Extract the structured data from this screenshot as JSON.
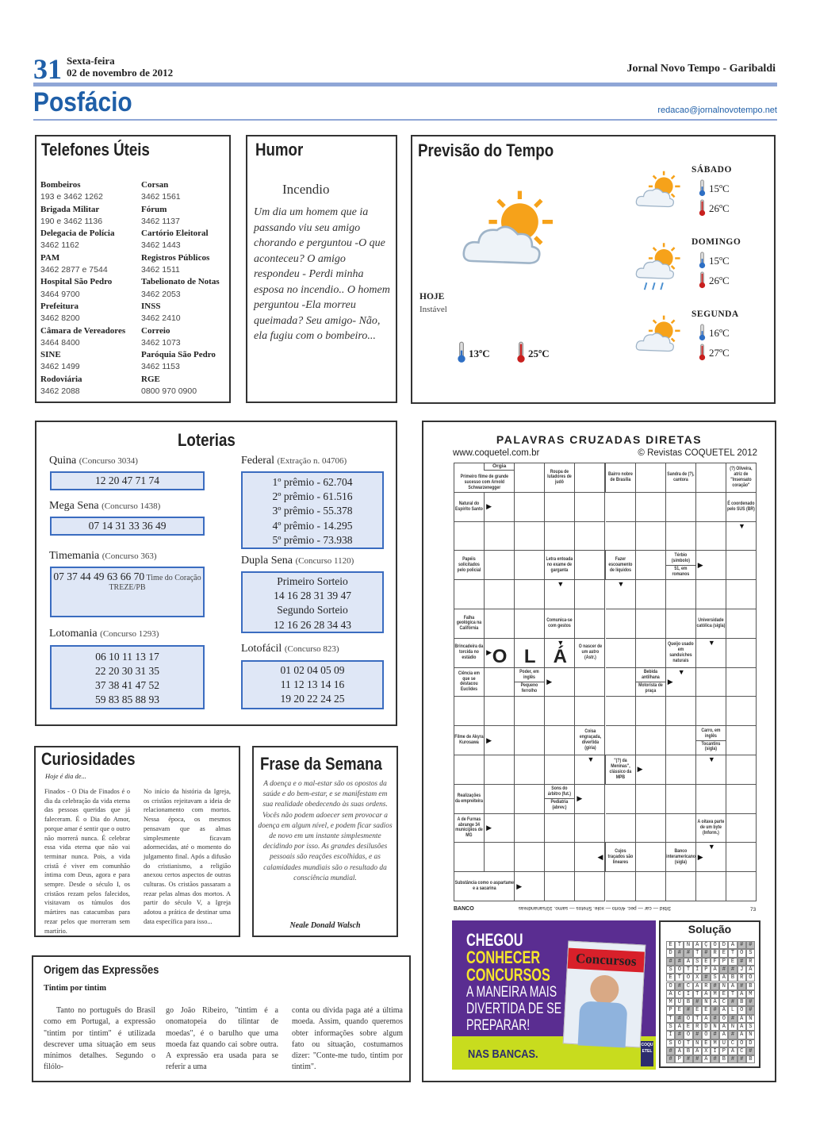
{
  "header": {
    "page_number": "31",
    "weekday": "Sexta-feira",
    "date": "02 de novembro de 2012",
    "paper": "Jornal Novo Tempo - Garibaldi",
    "section": "Posfácio",
    "email": "redacao@jornalnovotempo.net"
  },
  "telefones": {
    "title": "Telefones Úteis",
    "left": [
      {
        "name": "Bombeiros",
        "number": "193 e 3462 1262"
      },
      {
        "name": "Brigada Militar",
        "number": "190 e 3462 1136"
      },
      {
        "name": "Delegacia de Polícia",
        "number": "3462 1162"
      },
      {
        "name": "PAM",
        "number": "3462 2877 e 7544"
      },
      {
        "name": "Hospital São Pedro",
        "number": "3464 9700"
      },
      {
        "name": "Prefeitura",
        "number": "3462 8200"
      },
      {
        "name": "Câmara de Vereadores",
        "number": "3464 8400"
      },
      {
        "name": "SINE",
        "number": "3462 1499"
      },
      {
        "name": "Rodoviária",
        "number": "3462 2088"
      }
    ],
    "right": [
      {
        "name": "Corsan",
        "number": "3462 1561"
      },
      {
        "name": "Fórum",
        "number": "3462 1137"
      },
      {
        "name": "Cartório Eleitoral",
        "number": "3462 1443"
      },
      {
        "name": "Registros Públicos",
        "number": "3462 1511"
      },
      {
        "name": "Tabelionato de Notas",
        "number": "3462 2053"
      },
      {
        "name": "INSS",
        "number": "3462 2410"
      },
      {
        "name": "Correio",
        "number": "3462 1073"
      },
      {
        "name": "Paróquia São Pedro",
        "number": "3462 1153"
      },
      {
        "name": "RGE",
        "number": "0800 970 0900"
      }
    ]
  },
  "humor": {
    "title": "Humor",
    "heading": "Incendio",
    "text": "Um dia um homem que ia passando viu seu amigo chorando e perguntou -O que aconteceu? O amigo respondeu - Perdi minha esposa no incendio.. O homem perguntou -Ela morreu queimada? Seu amigo- Não, ela fugiu com o bombeiro..."
  },
  "tempo": {
    "title": "Previsão do Tempo",
    "today": {
      "label": "HOJE",
      "condition": "Instável",
      "min": "13ºC",
      "max": "25ºC",
      "icon": "sun-cloud-icon"
    },
    "days": [
      {
        "label": "SÁBADO",
        "min": "15ºC",
        "max": "26ºC",
        "icon": "sun-cloud-icon"
      },
      {
        "label": "DOMINGO",
        "min": "15ºC",
        "max": "26ºC",
        "icon": "sun-cloud-rain-icon"
      },
      {
        "label": "SEGUNDA",
        "min": "16ºC",
        "max": "27ºC",
        "icon": "sun-cloud-icon"
      }
    ]
  },
  "loterias": {
    "title": "Loterias",
    "quina": {
      "name": "Quina",
      "contest": "(Concurso 3034)",
      "numbers": "12  20  47  71  74"
    },
    "mega": {
      "name": "Mega Sena",
      "contest": "(Concurso 1438)",
      "numbers": "07  14  31  33  36 49"
    },
    "timemania": {
      "name": "Timemania",
      "contest": "(Concurso 363)",
      "numbers": "07  37  44  49  63  66  70",
      "team_label": "Time do Coração",
      "team": "TREZE/PB"
    },
    "lotomania": {
      "name": "Lotomania",
      "contest": "(Concurso 1293)",
      "rows": [
        "06   10  11   13   17",
        "22  20  30  31   35",
        "37   38  41   47   52",
        "59   83  85   88   93"
      ]
    },
    "federal": {
      "name": "Federal",
      "contest": "(Extração n. 04706)",
      "prizes": [
        "1º prêmio - 62.704",
        "2º prêmio - 61.516",
        "3º prêmio - 55.378",
        "4º prêmio - 14.295",
        "5º prêmio - 73.938"
      ]
    },
    "dupla": {
      "name": "Dupla Sena",
      "contest": "(Concurso 1120)",
      "lines": [
        "Primeiro Sorteio",
        "14 16 28 31 39 47",
        "Segundo Sorteio",
        "12 16 26 28 34 43"
      ]
    },
    "lotofacil": {
      "name": "Lotofácil",
      "contest": "(Concurso 823)",
      "rows": [
        "01   02   04   05   09",
        "11   12   13   14   16",
        "19   20   22   24   25"
      ]
    }
  },
  "curiosidades": {
    "title": "Curiosidades",
    "subtitle": "Hoje é dia de...",
    "col1": "Finados - O Dia de Finados é o dia da celebração da vida eterna das pessoas queridas que já faleceram. É o Dia do Amor, porque amar é sentir que o outro não morrerá nunca. É celebrar essa vida eterna que não vai terminar nunca. Pois, a vida cristã é viver em comunhão íntima com Deus, agora e para sempre. Desde o século I, os cristãos rezam pelos falecidos, visitavam os túmulos dos mártires nas catacumbas para rezar pelos que morreram sem martírio.",
    "col2": "No início da história da Igreja, os cristãos rejeitavam a ideia de relacionamento com mortos. Nessa época, os mesmos pensavam que as almas simplesmente ficavam adormecidas, até o momento do julgamento final. Após a difusão do cristianismo, a religião anexou certos aspectos de outras culturas. Os cristãos passaram a rezar pelas almas dos mortos. A partir do século V, a Igreja adotou a prática de destinar uma data específica para isso..."
  },
  "frase": {
    "title": "Frase da Semana",
    "text": "A doença e o mal-estar são os opostos da saúde e do bem-estar, e se manifestam em sua realidade obedecendo às suas ordens. Vocês não podem adoecer sem provocar a doença em algum nível, e podem ficar sadios de novo em um instante simplesmente decidindo por isso. As grandes desilusões pessoais são reações escolhidas, e as calamidades mundiais são o resultado da consciência mundial.",
    "author": "Neale Donald Walsch"
  },
  "origem": {
    "title": "Origem das Expressões",
    "subtitle": "Tintim por tintim",
    "col1": "Tanto no português do Brasil como em Portugal, a expressão \"tintim por tintim\" é utilizada descrever uma situação em seus mínimos detalhes. Segundo o filólo-",
    "col2": "go João Ribeiro, \"tintim é a onomatopeia do tilintar de moedas\", é o barulho que uma moeda faz quando cai sobre outra. A expressão era usada para se referir a uma",
    "col3": "conta ou dívida paga até a última moeda. Assim, quando queremos obter informações sobre algum fato ou situação, costumamos dizer: \"Conte-me tudo, tintim por tintim\"."
  },
  "cruzadas": {
    "title": "PALAVRAS CRUZADAS DIRETAS",
    "site": "www.coquetel.com.br",
    "copyright": "© Revistas COQUETEL 2012",
    "bank_label": "BANCO",
    "bank": "3/bid — car — pec. 4/orto — xole. 5/retos — samo. 10/sanandreas",
    "code": "73",
    "clues": [
      {
        "r": 0,
        "c": 0,
        "cs": 2,
        "parts": [
          "Primeiro filme de grande sucesso com Arnold Schwarzenegger"
        ],
        "sub": "Orgia"
      },
      {
        "r": 0,
        "c": 3,
        "parts": [
          "Roupa de lutadores de judô"
        ]
      },
      {
        "r": 0,
        "c": 5,
        "parts": [
          "Bairro nobre de Brasília"
        ]
      },
      {
        "r": 0,
        "c": 7,
        "parts": [
          "Sandra de (?), cantora"
        ]
      },
      {
        "r": 0,
        "c": 9,
        "parts": [
          "(?) Oliveira, atriz de \"Insensato coração\""
        ]
      },
      {
        "r": 1,
        "c": 0,
        "parts": [
          "Natural do Espírito Santo"
        ],
        "arrow": "right"
      },
      {
        "r": 1,
        "c": 9,
        "parts": [
          "É coordenado pelo SUS (BR)"
        ],
        "arrow": "down"
      },
      {
        "r": 3,
        "c": 0,
        "parts": [
          "Papéis solicitados pelo policial"
        ]
      },
      {
        "r": 3,
        "c": 3,
        "parts": [
          "Letra entoada no exame de garganta"
        ],
        "arrow": "down"
      },
      {
        "r": 3,
        "c": 5,
        "parts": [
          "Fazer escoamento de líquidos"
        ],
        "arrow": "down"
      },
      {
        "r": 3,
        "c": 7,
        "parts": [
          "Térbio (símbolo)",
          "51, em romanos"
        ],
        "arrow": "right"
      },
      {
        "r": 5,
        "c": 0,
        "parts": [
          "Falha geológica na Califórnia"
        ]
      },
      {
        "r": 5,
        "c": 3,
        "parts": [
          "Comunica-se com gestos"
        ],
        "arrow": "down"
      },
      {
        "r": 5,
        "c": 8,
        "parts": [
          "Universidade católica (sigla)"
        ],
        "arrow": "down"
      },
      {
        "r": 6,
        "c": 0,
        "parts": [
          "Brincadeira da torcida no estádio"
        ],
        "arrow": "right"
      },
      {
        "r": 6,
        "c": 4,
        "parts": [
          "O nascer de um astro (Astr.)"
        ]
      },
      {
        "r": 6,
        "c": 7,
        "parts": [
          "Queijo usado em sanduíches naturais"
        ],
        "arrow": "down"
      },
      {
        "r": 7,
        "c": 0,
        "parts": [
          "Ciência em que se destacou Euclides"
        ]
      },
      {
        "r": 7,
        "c": 2,
        "parts": [
          "Poder, em inglês",
          "Pequeno ferrolho"
        ],
        "arrow": "right"
      },
      {
        "r": 7,
        "c": 6,
        "parts": [
          "Bebida antilhana",
          "Motorista de praça"
        ],
        "arrow": "right"
      },
      {
        "r": 9,
        "c": 0,
        "parts": [
          "Filme de Akyra Kurosawa"
        ],
        "arrow": "right"
      },
      {
        "r": 9,
        "c": 4,
        "parts": [
          "Coisa engraçada, divertida (gíria)"
        ],
        "arrow": "down"
      },
      {
        "r": 9,
        "c": 8,
        "parts": [
          "Carro, em inglês",
          "Tocantins (sigla)"
        ],
        "arrow": "down"
      },
      {
        "r": 10,
        "c": 5,
        "parts": [
          "\"(?) da Meninas\", clássico da MPB"
        ],
        "arrow": "right"
      },
      {
        "r": 11,
        "c": 0,
        "parts": [
          "Realizações da empreiteira"
        ]
      },
      {
        "r": 11,
        "c": 3,
        "parts": [
          "Sons do árbitro (fut.)",
          "Pediatria (abrev.)"
        ],
        "arrow": "right"
      },
      {
        "r": 12,
        "c": 0,
        "parts": [
          "A de Furnas abrange 34 municípios de MG"
        ],
        "arrow": "right"
      },
      {
        "r": 12,
        "c": 8,
        "parts": [
          "A oitava parte de um byte (Inform.)"
        ],
        "arrow": "down"
      },
      {
        "r": 13,
        "c": 5,
        "parts": [
          "Cujos traçados são lineares"
        ],
        "arrow": "left"
      },
      {
        "r": 13,
        "c": 7,
        "parts": [
          "Banco interamericano (sigla)"
        ],
        "arrow": "right"
      },
      {
        "r": 14,
        "c": 0,
        "cs": 2,
        "parts": [
          "Substância como o aspartame e a sacarina"
        ],
        "arrow": "right"
      }
    ],
    "letters": [
      {
        "r": 6,
        "c": 1,
        "ch": "O"
      },
      {
        "r": 6,
        "c": 2,
        "ch": "L"
      },
      {
        "r": 6,
        "c": 3,
        "ch": "Á"
      }
    ]
  },
  "solucao": {
    "title": "Solução",
    "rows": [
      "ETNAÇODA##",
      "D##T#RETOS",
      "##ASEFPE#R",
      "SOTIPA##JA",
      "ETOX#SABRO",
      "O#CAR#NA#B",
      "ACITAMETAM",
      "MUB#NAC#B#",
      "PE#EE#ALO#",
      "T#OTA#O#AN",
      "SAERDNANAS",
      "I#O#O#A#AN",
      "SOTNEMUCOD",
      "#ABAXIPAC#",
      "#P##A#B##B"
    ]
  },
  "anuncio": {
    "line1": "CHEGOU",
    "line2": "CONHECER",
    "line3": "CONCURSOS",
    "line4": "A MANEIRA MAIS",
    "line5": "DIVERTIDA DE SE",
    "line6": "PREPARAR!",
    "footer": "NAS BANCAS.",
    "magazine": "Concursos",
    "brand": "COQUETEL",
    "colors": {
      "purple": "#5a2d91",
      "lime": "#c8dc1e",
      "yellow": "#f5e62a"
    }
  }
}
